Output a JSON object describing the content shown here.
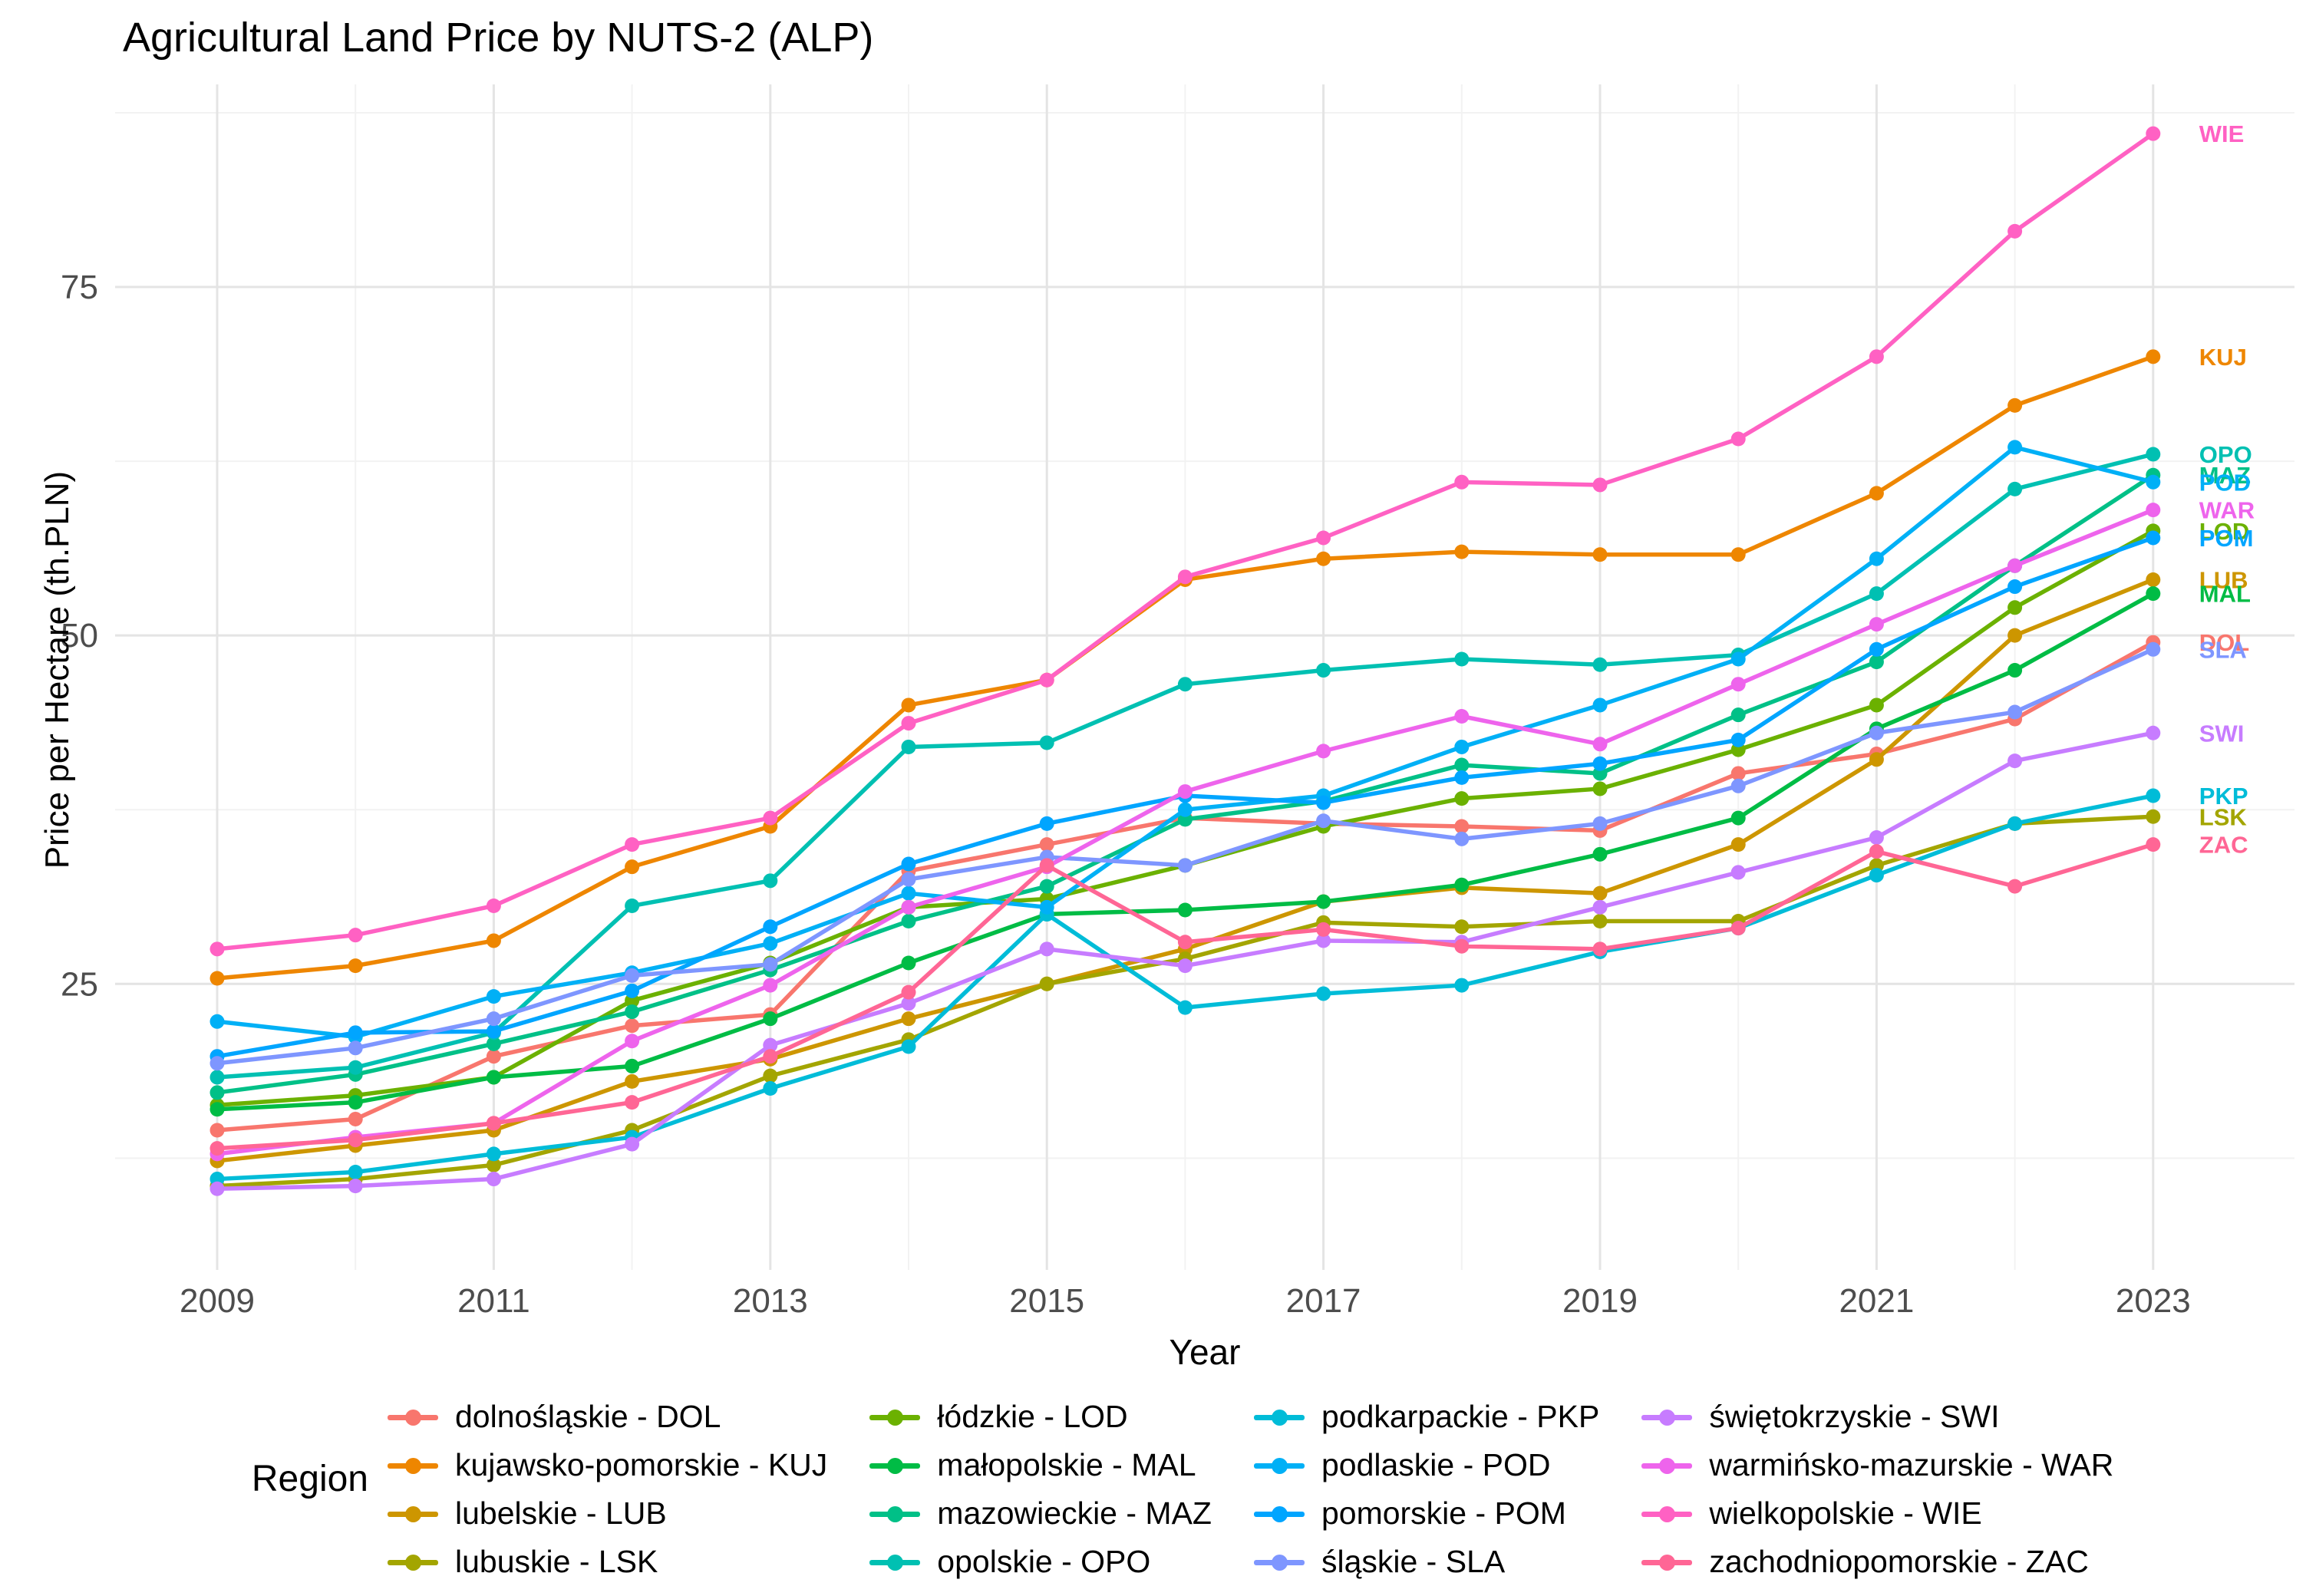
{
  "title": "Agricultural Land Price by NUTS-2 (ALP)",
  "axes": {
    "x_label": "Year",
    "y_label": "Price per Hectare (th.PLN)",
    "x_ticks": [
      2009,
      2011,
      2013,
      2015,
      2017,
      2019,
      2021,
      2023
    ],
    "x_minor": [
      2010,
      2012,
      2014,
      2016,
      2018,
      2020,
      2022
    ],
    "y_ticks": [
      25,
      50,
      75
    ],
    "y_minor": [
      12.5,
      37.5,
      62.5,
      87.5
    ],
    "tick_color": "#4D4D4D",
    "grid_major_color": "#E4E4E4",
    "grid_minor_color": "#F2F2F2"
  },
  "legend": {
    "title": "Region",
    "items": [
      {
        "code": "DOL",
        "label": "dolnośląskie - DOL",
        "color": "#F8766D"
      },
      {
        "code": "KUJ",
        "label": "kujawsko-pomorskie - KUJ",
        "color": "#EE8600"
      },
      {
        "code": "LUB",
        "label": "lubelskie - LUB",
        "color": "#CD9600"
      },
      {
        "code": "LSK",
        "label": "lubuskie - LSK",
        "color": "#A3A500"
      },
      {
        "code": "LOD",
        "label": "łódzkie - LOD",
        "color": "#6BB100"
      },
      {
        "code": "MAL",
        "label": "małopolskie - MAL",
        "color": "#00BC45"
      },
      {
        "code": "MAZ",
        "label": "mazowieckie - MAZ",
        "color": "#00C087"
      },
      {
        "code": "OPO",
        "label": "opolskie - OPO",
        "color": "#00C0B2"
      },
      {
        "code": "PKP",
        "label": "podkarpackie - PKP",
        "color": "#00BCD8"
      },
      {
        "code": "POD",
        "label": "podlaskie - POD",
        "color": "#00B0F6"
      },
      {
        "code": "POM",
        "label": "pomorskie - POM",
        "color": "#00A5FF"
      },
      {
        "code": "SLA",
        "label": "śląskie - SLA",
        "color": "#7E96FF"
      },
      {
        "code": "SWI",
        "label": "świętokrzyskie - SWI",
        "color": "#C77CFF"
      },
      {
        "code": "WAR",
        "label": "warmińsko-mazurskie - WAR",
        "color": "#EE64EC"
      },
      {
        "code": "WIE",
        "label": "wielkopolskie - WIE",
        "color": "#FF61C3"
      },
      {
        "code": "ZAC",
        "label": "zachodniopomorskie - ZAC",
        "color": "#FF6695"
      }
    ]
  },
  "chart_data": {
    "type": "line",
    "title": "Agricultural Land Price by NUTS-2 (ALP)",
    "xlabel": "Year",
    "ylabel": "Price per Hectare (th.PLN)",
    "x": [
      2009,
      2010,
      2011,
      2012,
      2013,
      2014,
      2015,
      2016,
      2017,
      2018,
      2019,
      2020,
      2021,
      2022,
      2023
    ],
    "xlim": [
      2008.25,
      2024.0
    ],
    "ylim": [
      4.5,
      89.5
    ],
    "grid": true,
    "legend_position": "bottom",
    "series": [
      {
        "name": "dolnośląskie",
        "code": "DOL",
        "color": "#F8766D",
        "values": [
          14.5,
          15.3,
          19.8,
          22.0,
          22.8,
          33.1,
          35.0,
          36.9,
          36.5,
          36.3,
          36.0,
          40.1,
          41.5,
          44.0,
          49.5
        ]
      },
      {
        "name": "kujawsko-pomorskie",
        "code": "KUJ",
        "color": "#EE8600",
        "values": [
          25.4,
          26.3,
          28.1,
          33.4,
          36.3,
          45.0,
          46.8,
          54.0,
          55.5,
          56.0,
          55.8,
          55.8,
          60.2,
          66.5,
          70.0
        ]
      },
      {
        "name": "lubelskie",
        "code": "LUB",
        "color": "#CD9600",
        "values": [
          12.3,
          13.4,
          14.5,
          18.0,
          19.6,
          22.5,
          25.0,
          27.5,
          30.9,
          31.9,
          31.5,
          35.0,
          41.1,
          50.0,
          54.0
        ]
      },
      {
        "name": "lubuskie",
        "code": "LSK",
        "color": "#A3A500",
        "values": [
          10.5,
          11.0,
          12.0,
          14.5,
          18.4,
          21.0,
          25.0,
          26.8,
          29.4,
          29.1,
          29.5,
          29.5,
          33.5,
          36.5,
          37.0
        ]
      },
      {
        "name": "łódzkie",
        "code": "LOD",
        "color": "#6BB100",
        "values": [
          16.3,
          17.0,
          18.3,
          23.8,
          26.5,
          30.5,
          31.1,
          33.5,
          36.3,
          38.3,
          39.0,
          41.8,
          45.0,
          52.0,
          57.5
        ]
      },
      {
        "name": "małopolskie",
        "code": "MAL",
        "color": "#00BC45",
        "values": [
          16.0,
          16.5,
          18.3,
          19.1,
          22.5,
          26.5,
          30.0,
          30.3,
          30.9,
          32.1,
          34.3,
          36.9,
          43.3,
          47.5,
          53.0
        ]
      },
      {
        "name": "mazowieckie",
        "code": "MAZ",
        "color": "#00C087",
        "values": [
          17.2,
          18.5,
          20.7,
          23.0,
          26.0,
          29.5,
          32.0,
          36.8,
          38.1,
          40.7,
          40.1,
          44.3,
          48.1,
          55.0,
          61.5
        ]
      },
      {
        "name": "opolskie",
        "code": "OPO",
        "color": "#00C0B2",
        "values": [
          18.3,
          19.0,
          21.5,
          30.6,
          32.4,
          42.0,
          42.3,
          46.5,
          47.5,
          48.3,
          47.9,
          48.6,
          53.0,
          60.5,
          63.0
        ]
      },
      {
        "name": "podkarpackie",
        "code": "PKP",
        "color": "#00BCD8",
        "values": [
          11.0,
          11.5,
          12.8,
          14.0,
          17.5,
          20.5,
          30.0,
          23.3,
          24.3,
          24.9,
          27.3,
          29.0,
          32.8,
          36.5,
          38.5
        ]
      },
      {
        "name": "podlaskie",
        "code": "POD",
        "color": "#00B0F6",
        "values": [
          22.3,
          21.2,
          24.1,
          25.8,
          27.9,
          31.5,
          30.5,
          37.5,
          38.5,
          42.0,
          45.0,
          48.3,
          55.5,
          63.5,
          61.0
        ]
      },
      {
        "name": "pomorskie",
        "code": "POM",
        "color": "#00A5FF",
        "values": [
          19.8,
          21.5,
          21.6,
          24.5,
          29.1,
          33.6,
          36.5,
          38.5,
          38.0,
          39.8,
          40.8,
          42.5,
          49.0,
          53.5,
          57.0
        ]
      },
      {
        "name": "śląskie",
        "code": "SLA",
        "color": "#7E96FF",
        "values": [
          19.3,
          20.4,
          22.5,
          25.6,
          26.4,
          32.5,
          34.1,
          33.5,
          36.7,
          35.4,
          36.5,
          39.2,
          43.0,
          44.5,
          49.0
        ]
      },
      {
        "name": "świętokrzyskie",
        "code": "SWI",
        "color": "#C77CFF",
        "values": [
          10.3,
          10.5,
          11.0,
          13.5,
          20.6,
          23.6,
          27.5,
          26.3,
          28.1,
          28.0,
          30.5,
          33.0,
          35.5,
          41.0,
          43.0
        ]
      },
      {
        "name": "warmińsko-mazurskie",
        "code": "WAR",
        "color": "#EE64EC",
        "values": [
          12.8,
          14.0,
          15.0,
          20.9,
          24.9,
          30.5,
          33.4,
          38.8,
          41.7,
          44.2,
          42.2,
          46.5,
          50.8,
          55.0,
          59.0
        ]
      },
      {
        "name": "wielkopolskie",
        "code": "WIE",
        "color": "#FF61C3",
        "values": [
          27.5,
          28.5,
          30.6,
          35.0,
          36.9,
          43.7,
          46.8,
          54.2,
          57.0,
          61.0,
          60.8,
          64.1,
          70.0,
          79.0,
          86.0
        ]
      },
      {
        "name": "zachodniopomorskie",
        "code": "ZAC",
        "color": "#FF6695",
        "values": [
          13.2,
          13.8,
          15.0,
          16.5,
          19.8,
          24.4,
          33.5,
          28.0,
          28.9,
          27.7,
          27.5,
          29.0,
          34.5,
          32.0,
          35.0
        ]
      }
    ]
  }
}
